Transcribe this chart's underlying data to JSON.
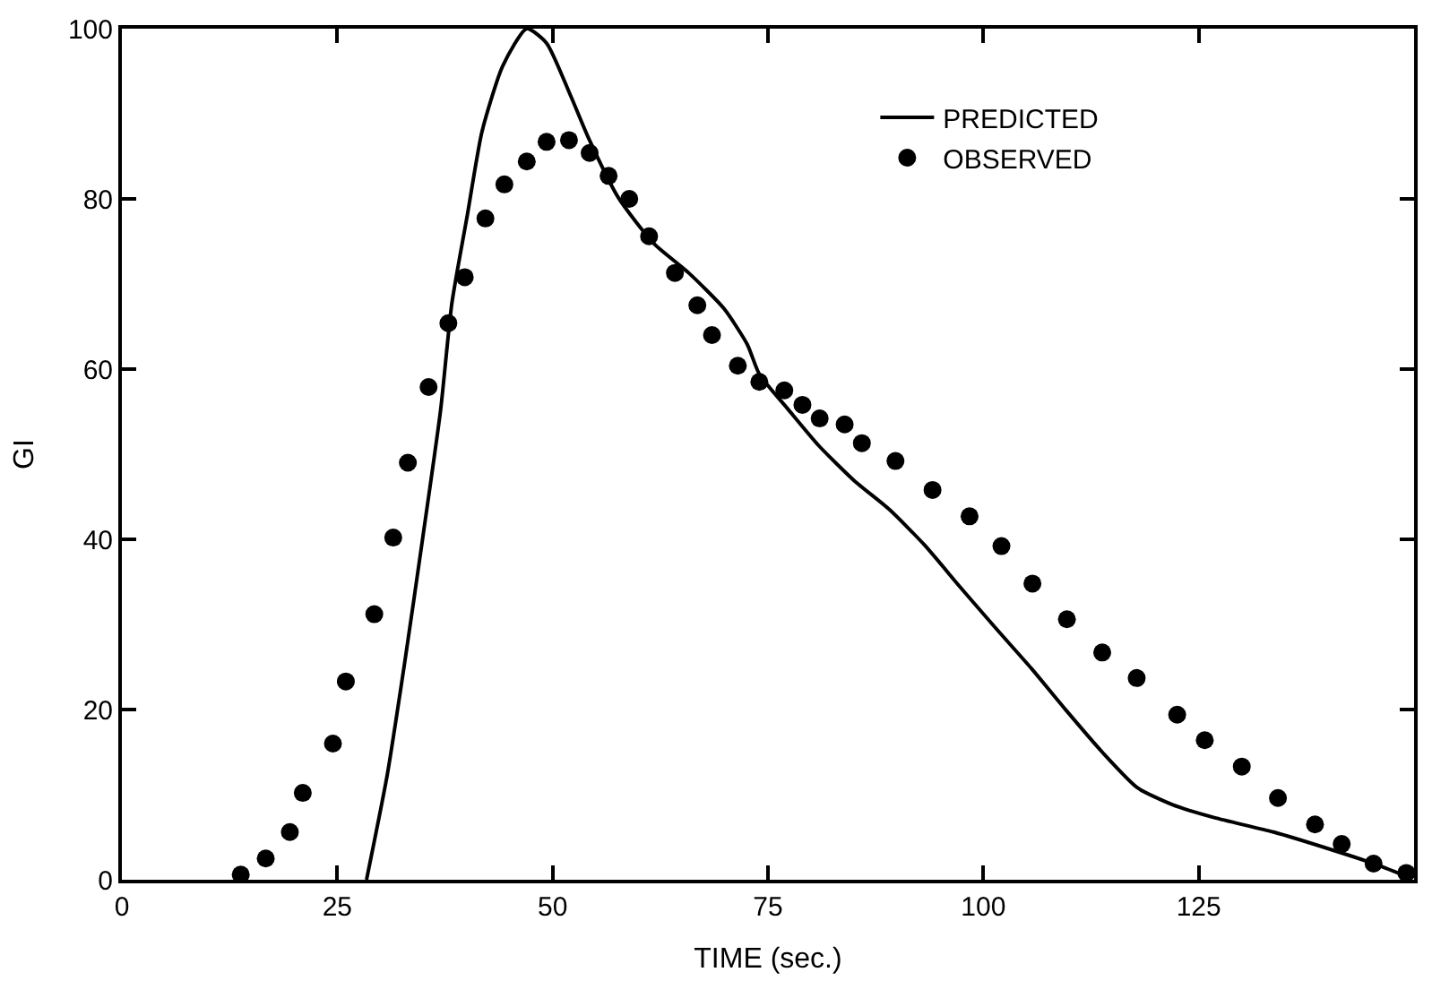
{
  "chart_data": {
    "type": "line",
    "xlabel": "TIME (sec.)",
    "ylabel": "GI",
    "xlim": [
      0,
      150
    ],
    "xticks": [
      0,
      25,
      50,
      75,
      100,
      125
    ],
    "ylim": [
      0,
      100
    ],
    "yticks": [
      0,
      20,
      40,
      60,
      80,
      100
    ],
    "legend": "top right",
    "series": [
      {
        "name": "PREDICTED",
        "color": "#000000",
        "line_style": "solid",
        "marker": "none",
        "x": [
          28.4,
          30.8,
          32.9,
          34.9,
          37.0,
          38.3,
          40.1,
          41.8,
          44.2,
          47.0,
          49.3,
          52.1,
          54.1,
          57.6,
          61.7,
          65.8,
          69.9,
          72.6,
          74.0,
          77.4,
          80.9,
          85.0,
          89.1,
          93.2,
          97.3,
          101.4,
          105.6,
          109.7,
          113.8,
          117.9,
          122.0,
          126.8,
          133.7,
          140.5,
          145.3,
          149.1
        ],
        "values": [
          0,
          12.3,
          26,
          40,
          55.2,
          67.7,
          78.1,
          87.9,
          95.6,
          100,
          98.3,
          92.1,
          87.3,
          80.2,
          74.8,
          71.3,
          67.1,
          62.9,
          59.4,
          55.2,
          51,
          46.9,
          43.5,
          39.3,
          34.4,
          29.6,
          24.8,
          19.8,
          15,
          10.8,
          8.8,
          7.3,
          5.6,
          3.5,
          1.9,
          0.4
        ]
      },
      {
        "name": "OBSERVED",
        "type": "scatter",
        "color": "#000000",
        "marker": "circle",
        "x": [
          13.8,
          16.7,
          19.5,
          21.0,
          24.5,
          26.0,
          29.3,
          31.5,
          33.2,
          35.6,
          37.9,
          39.8,
          42.2,
          44.4,
          47.0,
          49.3,
          51.9,
          54.3,
          56.5,
          58.9,
          61.2,
          64.2,
          66.8,
          68.5,
          71.5,
          74.0,
          76.9,
          79.0,
          81.0,
          83.9,
          85.9,
          89.8,
          94.1,
          98.4,
          102.1,
          105.7,
          109.7,
          113.8,
          117.8,
          122.5,
          125.7,
          130.0,
          134.2,
          138.5,
          141.6,
          145.3,
          149.1
        ],
        "values": [
          0.6,
          2.5,
          5.6,
          10.2,
          16.0,
          23.3,
          31.2,
          40.2,
          49,
          57.9,
          65.4,
          70.8,
          77.7,
          81.7,
          84.4,
          86.7,
          86.9,
          85.4,
          82.7,
          80,
          75.6,
          71.3,
          67.5,
          64,
          60.4,
          58.5,
          57.5,
          55.8,
          54.2,
          53.5,
          51.3,
          49.2,
          45.8,
          42.7,
          39.2,
          34.8,
          30.6,
          26.7,
          23.7,
          19.4,
          16.4,
          13.3,
          9.6,
          6.5,
          4.2,
          1.9,
          0.8
        ]
      }
    ]
  }
}
